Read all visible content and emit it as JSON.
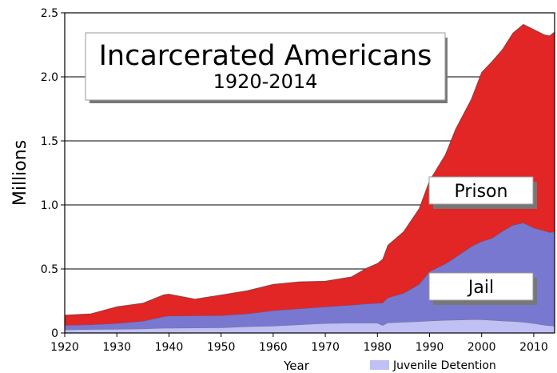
{
  "chart_data": {
    "type": "area",
    "stacked": true,
    "title": "Incarcerated Americans",
    "subtitle": "1920-2014",
    "ylabel": "Millions",
    "xlabel": "Year",
    "xlim": [
      1920,
      2014
    ],
    "ylim": [
      0,
      2.5
    ],
    "x_ticks": [
      "1920",
      "1930",
      "1940",
      "1950",
      "1960",
      "1970",
      "1980",
      "1990",
      "2000",
      "2010"
    ],
    "y_ticks": [
      "0",
      "0.5",
      "1.0",
      "1.5",
      "2.0",
      "2.5"
    ],
    "grid": true,
    "x": [
      1920,
      1925,
      1930,
      1935,
      1939,
      1940,
      1945,
      1950,
      1955,
      1960,
      1965,
      1970,
      1975,
      1978,
      1980,
      1981,
      1982,
      1985,
      1988,
      1990,
      1993,
      1995,
      1998,
      2000,
      2002,
      2004,
      2006,
      2008,
      2010,
      2012,
      2013,
      2014
    ],
    "series": [
      {
        "name": "Juvenile Detention",
        "color": "#c0c0f5",
        "values": [
          0.025,
          0.028,
          0.03,
          0.033,
          0.038,
          0.039,
          0.04,
          0.042,
          0.05,
          0.055,
          0.065,
          0.075,
          0.078,
          0.078,
          0.078,
          0.06,
          0.08,
          0.085,
          0.09,
          0.095,
          0.1,
          0.102,
          0.105,
          0.105,
          0.1,
          0.095,
          0.092,
          0.085,
          0.075,
          0.062,
          0.058,
          0.055
        ]
      },
      {
        "name": "Jail",
        "label": "Jail",
        "color": "#7878d0",
        "values": [
          0.035,
          0.037,
          0.045,
          0.06,
          0.09,
          0.095,
          0.095,
          0.095,
          0.1,
          0.12,
          0.125,
          0.13,
          0.14,
          0.15,
          0.155,
          0.175,
          0.195,
          0.225,
          0.29,
          0.385,
          0.44,
          0.49,
          0.57,
          0.61,
          0.64,
          0.7,
          0.75,
          0.775,
          0.745,
          0.737,
          0.727,
          0.735
        ]
      },
      {
        "name": "Prison",
        "label": "Prison",
        "color": "#e22525",
        "values": [
          0.08,
          0.085,
          0.13,
          0.14,
          0.17,
          0.17,
          0.13,
          0.16,
          0.18,
          0.205,
          0.21,
          0.2,
          0.22,
          0.28,
          0.31,
          0.34,
          0.41,
          0.48,
          0.59,
          0.71,
          0.85,
          1.0,
          1.15,
          1.32,
          1.38,
          1.42,
          1.5,
          1.55,
          1.55,
          1.53,
          1.535,
          1.56
        ]
      }
    ],
    "legend": [
      {
        "name": "Juvenile Detention",
        "color": "#c0c0f5"
      }
    ]
  }
}
